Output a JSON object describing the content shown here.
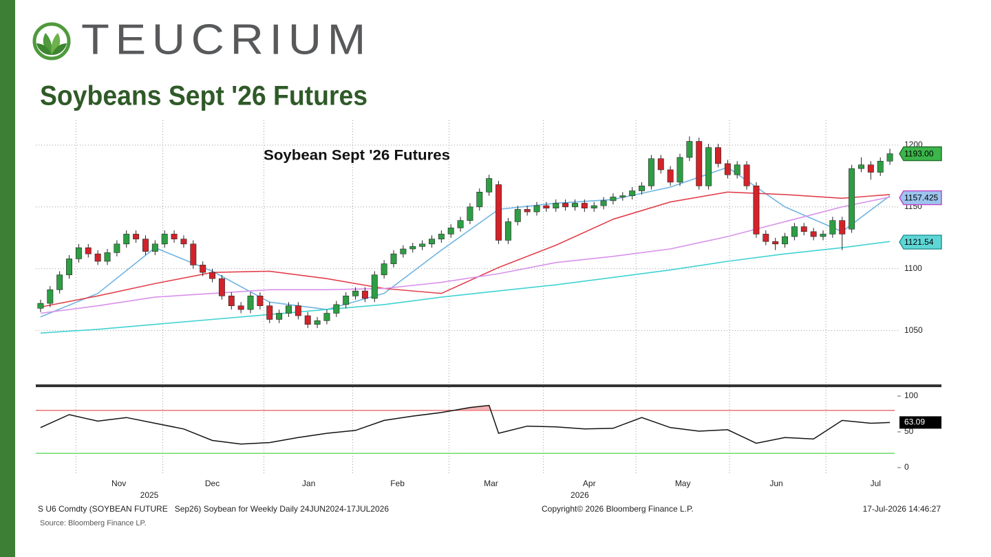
{
  "header": {
    "brand": "TEUCRIUM",
    "title": "Soybeans Sept '26 Futures"
  },
  "footer": {
    "left": "S U6 Comdty (SOYBEAN FUTURE   Sep26) Soybean for Weekly Daily 24JUN2024-17JUL2026",
    "copyright": "Copyright© 2026 Bloomberg Finance L.P.",
    "timestamp": "17-Jul-2026 14:46:27",
    "source": "Source: Bloomberg Finance LP."
  },
  "chart_data": [
    {
      "type": "candlestick",
      "title": "Soybean Sept '26 Futures",
      "categories": [
        null,
        null,
        null,
        null,
        null,
        null,
        null,
        null,
        null,
        null,
        null,
        null,
        null,
        null,
        null,
        null,
        null,
        null,
        null,
        null,
        null,
        null,
        null,
        null,
        null,
        null,
        null,
        null,
        null,
        null,
        null,
        null,
        null,
        null,
        null,
        null,
        null,
        null,
        null,
        null,
        null,
        null,
        null,
        null,
        null,
        null,
        null,
        null,
        null,
        null,
        null,
        null,
        null,
        null,
        null,
        null,
        null,
        null,
        null,
        null,
        null,
        null,
        null,
        null,
        null,
        null,
        null,
        null,
        null,
        null,
        null,
        null,
        null,
        null,
        null,
        null,
        null,
        null,
        null,
        null,
        null,
        null,
        null,
        null,
        null,
        null,
        null,
        null,
        null,
        null
      ],
      "open": [
        1068,
        1072,
        1083,
        1095,
        1108,
        1117,
        1112,
        1106,
        1113,
        1120,
        1128,
        1124,
        1114,
        1120,
        1128,
        1124,
        1120,
        1103,
        1097,
        1092,
        1078,
        1070,
        1067,
        1078,
        1070,
        1059,
        1064,
        1070,
        1062,
        1055,
        1058,
        1064,
        1071,
        1078,
        1082,
        1076,
        1095,
        1104,
        1112,
        1116,
        1118,
        1120,
        1124,
        1128,
        1133,
        1139,
        1150,
        1162,
        1168,
        1123,
        1138,
        1148,
        1146,
        1151,
        1149,
        1153,
        1150,
        1153,
        1149,
        1151,
        1155,
        1158,
        1159,
        1163,
        1167,
        1189,
        1180,
        1170,
        1190,
        1203,
        1167,
        1198,
        1185,
        1176,
        1184,
        1167,
        1128,
        1122,
        1120,
        1126,
        1134,
        1130,
        1126,
        1128,
        1139,
        1132,
        1181,
        1184,
        1178,
        1187
      ],
      "high": [
        1075,
        1086,
        1098,
        1111,
        1120,
        1120,
        1115,
        1116,
        1123,
        1131,
        1131,
        1127,
        1123,
        1131,
        1131,
        1127,
        1123,
        1106,
        1100,
        1095,
        1081,
        1073,
        1081,
        1081,
        1073,
        1067,
        1073,
        1073,
        1065,
        1061,
        1067,
        1074,
        1081,
        1085,
        1085,
        1098,
        1107,
        1115,
        1119,
        1121,
        1123,
        1127,
        1131,
        1136,
        1142,
        1153,
        1165,
        1176,
        1171,
        1141,
        1151,
        1151,
        1154,
        1154,
        1156,
        1156,
        1156,
        1156,
        1154,
        1158,
        1161,
        1162,
        1166,
        1170,
        1192,
        1192,
        1183,
        1193,
        1207,
        1206,
        1201,
        1201,
        1188,
        1187,
        1187,
        1170,
        1131,
        1125,
        1129,
        1137,
        1137,
        1133,
        1131,
        1142,
        1142,
        1184,
        1190,
        1187,
        1190,
        1197
      ],
      "low": [
        1065,
        1069,
        1080,
        1092,
        1105,
        1109,
        1103,
        1103,
        1110,
        1117,
        1121,
        1111,
        1111,
        1117,
        1121,
        1117,
        1100,
        1094,
        1089,
        1075,
        1067,
        1064,
        1064,
        1067,
        1056,
        1056,
        1061,
        1059,
        1052,
        1052,
        1055,
        1061,
        1068,
        1075,
        1073,
        1073,
        1092,
        1101,
        1109,
        1113,
        1115,
        1117,
        1121,
        1125,
        1130,
        1136,
        1147,
        1159,
        1120,
        1120,
        1135,
        1143,
        1143,
        1146,
        1146,
        1147,
        1147,
        1146,
        1146,
        1148,
        1152,
        1155,
        1156,
        1160,
        1164,
        1177,
        1167,
        1167,
        1187,
        1164,
        1164,
        1182,
        1173,
        1173,
        1164,
        1125,
        1119,
        1115,
        1117,
        1123,
        1127,
        1123,
        1123,
        1125,
        1115,
        1129,
        1178,
        1172,
        1175,
        1184
      ],
      "close": [
        1072,
        1083,
        1095,
        1108,
        1117,
        1112,
        1106,
        1113,
        1120,
        1128,
        1124,
        1114,
        1120,
        1128,
        1124,
        1120,
        1103,
        1097,
        1092,
        1078,
        1070,
        1067,
        1078,
        1070,
        1059,
        1064,
        1070,
        1062,
        1055,
        1058,
        1064,
        1071,
        1078,
        1082,
        1076,
        1095,
        1104,
        1112,
        1116,
        1118,
        1120,
        1124,
        1128,
        1133,
        1139,
        1150,
        1162,
        1173,
        1123,
        1138,
        1148,
        1146,
        1151,
        1149,
        1153,
        1150,
        1153,
        1149,
        1151,
        1155,
        1158,
        1159,
        1163,
        1167,
        1189,
        1180,
        1170,
        1190,
        1203,
        1167,
        1198,
        1185,
        1176,
        1184,
        1167,
        1128,
        1122,
        1120,
        1126,
        1134,
        1130,
        1126,
        1128,
        1139,
        1128,
        1181,
        1184,
        1178,
        1187,
        1193
      ],
      "up_color": "#2e9e44",
      "down_color": "#d2232a",
      "lines": [
        {
          "color": "#6fb4e2",
          "x": [
            0,
            6,
            12,
            18,
            24,
            30,
            36,
            42,
            48,
            54,
            60,
            66,
            72,
            78,
            84,
            89
          ],
          "values": [
            1061,
            1080,
            1117,
            1098,
            1073,
            1067,
            1080,
            1115,
            1148,
            1153,
            1156,
            1166,
            1182,
            1150,
            1130,
            1159
          ]
        },
        {
          "color": "#e2404c",
          "x": [
            0,
            6,
            12,
            18,
            24,
            30,
            36,
            42,
            48,
            54,
            60,
            66,
            72,
            78,
            84,
            89
          ],
          "values": [
            1069,
            1078,
            1088,
            1097,
            1098,
            1092,
            1084,
            1080,
            1101,
            1119,
            1140,
            1154,
            1162,
            1160,
            1157,
            1160
          ]
        },
        {
          "color": "#d890ea",
          "x": [
            0,
            6,
            12,
            18,
            24,
            30,
            36,
            42,
            48,
            54,
            60,
            66,
            72,
            78,
            84,
            89
          ],
          "values": [
            1064,
            1070,
            1077,
            1080,
            1083,
            1083,
            1084,
            1089,
            1096,
            1105,
            1110,
            1116,
            1126,
            1138,
            1150,
            1158
          ]
        },
        {
          "color": "#3fd2d2",
          "x": [
            0,
            6,
            12,
            18,
            24,
            30,
            36,
            42,
            48,
            54,
            60,
            66,
            72,
            78,
            84,
            89
          ],
          "values": [
            1048,
            1051,
            1055,
            1059,
            1063,
            1067,
            1071,
            1077,
            1082,
            1087,
            1093,
            1099,
            1106,
            1112,
            1117,
            1122
          ]
        }
      ],
      "price_labels": [
        {
          "value": 1193,
          "label": "1193.00",
          "color": "#3cb54a",
          "border": "#1d6b28"
        },
        {
          "value": 1157.425,
          "label": "1157.425",
          "color": "#9cc4ee",
          "border": "#c040c8"
        },
        {
          "value": 1121.54,
          "label": "1121.54",
          "color": "#5fd6d6",
          "border": "#1f8f8f"
        }
      ],
      "ylim": [
        1007,
        1220
      ],
      "yticks": [
        1050,
        1100,
        1150,
        1200
      ],
      "grid": true,
      "xticks": [
        {
          "value": 8.2,
          "label": "Nov"
        },
        {
          "value": 18.0,
          "label": "Dec"
        },
        {
          "value": 28.1,
          "label": "Jan"
        },
        {
          "value": 37.4,
          "label": "Feb"
        },
        {
          "value": 47.2,
          "label": "Mar"
        },
        {
          "value": 57.5,
          "label": "Apr"
        },
        {
          "value": 67.3,
          "label": "May"
        },
        {
          "value": 77.1,
          "label": "Jun"
        },
        {
          "value": 87.5,
          "label": "Jul"
        }
      ],
      "xgrid": [
        3.7,
        12.8,
        23.4,
        32.7,
        42.8,
        52.7,
        62.4,
        72.2,
        82.3
      ],
      "year_labels": [
        {
          "value": 11.4,
          "label": "2025"
        },
        {
          "value": 56.5,
          "label": "2026"
        }
      ]
    },
    {
      "type": "line",
      "color": "#111111",
      "x": [
        0,
        3,
        6,
        9,
        12,
        15,
        18,
        21,
        24,
        27,
        30,
        33,
        36,
        39,
        42,
        45,
        47,
        48,
        51,
        54,
        57,
        60,
        63,
        66,
        69,
        72,
        75,
        78,
        81,
        84,
        87,
        89
      ],
      "values": [
        56,
        74,
        65,
        70,
        62,
        54,
        38,
        33,
        35,
        42,
        48,
        52,
        66,
        72,
        77,
        84,
        87,
        48,
        58,
        57,
        54,
        55,
        70,
        56,
        51,
        53,
        34,
        42,
        40,
        66,
        62,
        63.09
      ],
      "ylim": [
        0,
        100
      ],
      "yticks": [
        0,
        50,
        100
      ],
      "bands": [
        {
          "value": 80,
          "color": "#e03a3a",
          "fill": "#f4b3b3"
        },
        {
          "value": 20,
          "color": "#3ecf3e"
        }
      ],
      "last_label": 63.09
    }
  ]
}
